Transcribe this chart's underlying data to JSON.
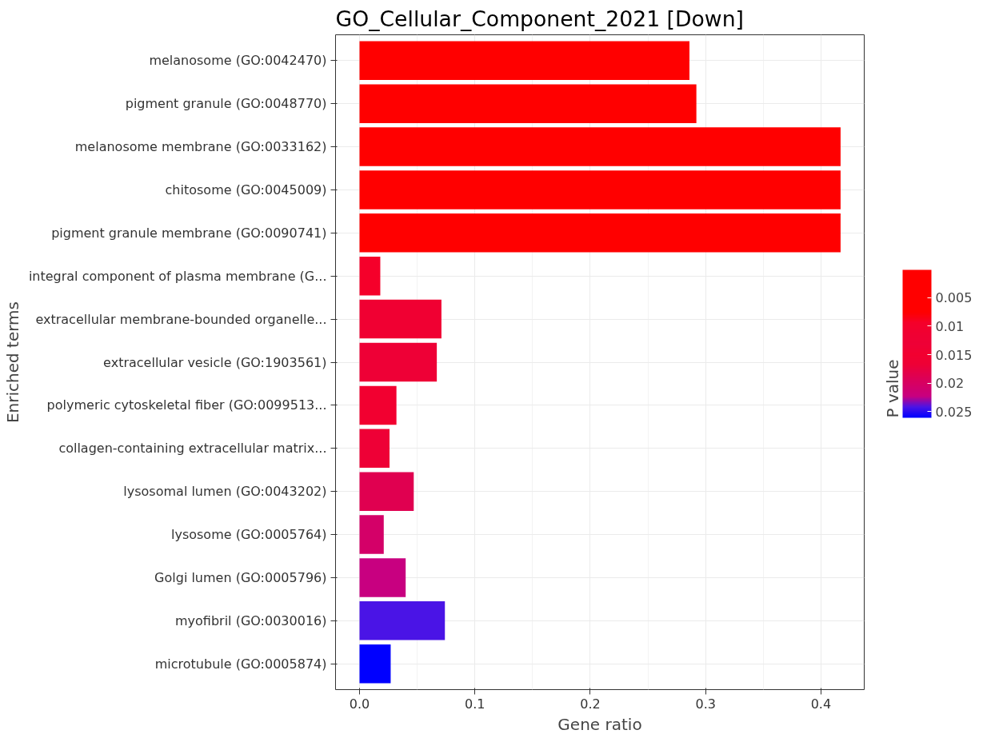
{
  "chart_data": {
    "type": "bar",
    "orientation": "horizontal",
    "title": "GO_Cellular_Component_2021 [Down]",
    "xlabel": "Gene ratio",
    "ylabel": "Enriched terms",
    "clabel": "P value",
    "categories": [
      "melanosome (GO:0042470)",
      "pigment granule (GO:0048770)",
      "melanosome membrane (GO:0033162)",
      "chitosome (GO:0045009)",
      "pigment granule membrane (GO:0090741)",
      "integral component of plasma membrane (G...",
      "extracellular membrane-bounded organelle...",
      "extracellular vesicle (GO:1903561)",
      "polymeric cytoskeletal fiber (GO:0099513...",
      "collagen-containing extracellular matrix...",
      "lysosomal lumen (GO:0043202)",
      "lysosome (GO:0005764)",
      "Golgi lumen (GO:0005796)",
      "myofibril (GO:0030016)",
      "microtubule (GO:0005874)"
    ],
    "values": [
      0.286,
      0.292,
      0.417,
      0.417,
      0.417,
      0.018,
      0.071,
      0.067,
      0.032,
      0.026,
      0.047,
      0.021,
      0.04,
      0.074,
      0.027
    ],
    "colors": [
      "#ff0000",
      "#ff0000",
      "#ff0000",
      "#ff0000",
      "#ff0000",
      "#f5002a",
      "#f00032",
      "#ee0036",
      "#f20030",
      "#ee0036",
      "#e00050",
      "#d40068",
      "#c80080",
      "#4a14e6",
      "#0000ff"
    ],
    "xlim": [
      -0.0208,
      0.4375
    ],
    "xticks": [
      {
        "value": 0,
        "label": "0.0"
      },
      0.1,
      0.2,
      0.3,
      0.4
    ],
    "clim": [
      0.0001,
      0.0261
    ],
    "cticks": [
      0.005,
      0.01,
      0.015,
      0.02,
      0.025
    ],
    "grid": true
  }
}
